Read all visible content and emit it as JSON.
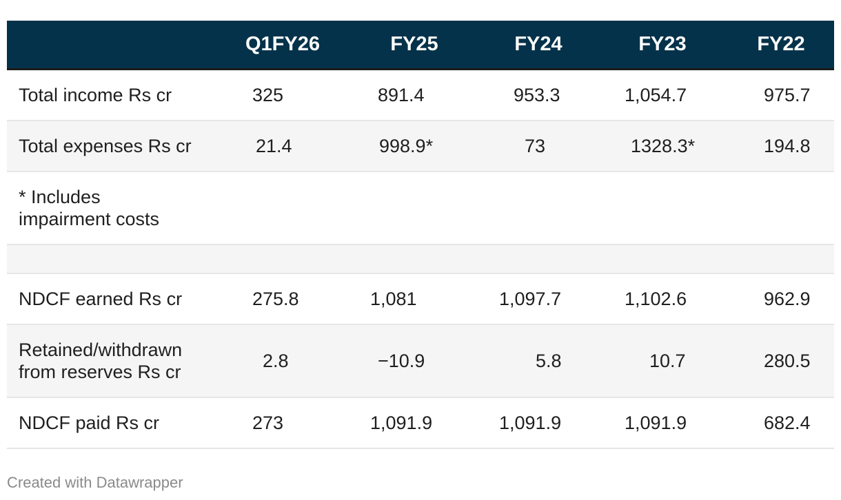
{
  "chart_data": {
    "type": "table",
    "columns": [
      "",
      "Q1FY26",
      "FY25",
      "FY24",
      "FY23",
      "FY22"
    ],
    "rows": [
      {
        "label": "Total income Rs cr",
        "values": [
          "325",
          "891.4",
          "953.3",
          "1,054.7",
          "975.7"
        ],
        "shade": false
      },
      {
        "label": "Total expenses Rs cr",
        "values": [
          "21.4",
          "998.9*",
          "73",
          "1328.3*",
          "194.8"
        ],
        "shade": true
      },
      {
        "label": "* Includes\nimpairment costs",
        "values": [
          "",
          "",
          "",
          "",
          ""
        ],
        "shade": false
      },
      {
        "label": "",
        "values": [
          "",
          "",
          "",
          "",
          ""
        ],
        "shade": true
      },
      {
        "label": "NDCF earned Rs cr",
        "values": [
          "275.8",
          "1,081",
          "1,097.7",
          "1,102.6",
          "962.9"
        ],
        "shade": false
      },
      {
        "label": "Retained/withdrawn\nfrom reserves Rs cr",
        "values": [
          "2.8",
          "−10.9",
          "5.8",
          "10.7",
          "280.5"
        ],
        "shade": true
      },
      {
        "label": "NDCF paid Rs cr",
        "values": [
          "273",
          "1,091.9",
          "1,091.9",
          "1,091.9",
          "682.4"
        ],
        "shade": false
      }
    ],
    "header_color": "#04324a",
    "shade_color": "#f5f5f5"
  },
  "footer": {
    "credit": "Created with Datawrapper"
  }
}
